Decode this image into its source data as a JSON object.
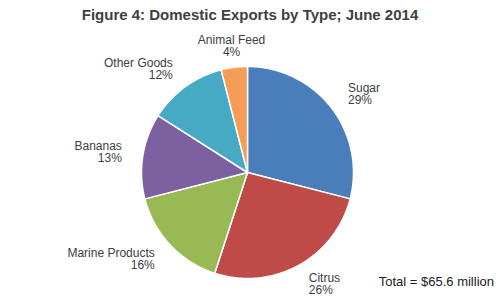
{
  "chart_data": {
    "type": "pie",
    "title": "Figure 4: Domestic Exports by Type; June 2014",
    "categories": [
      "Sugar",
      "Citrus",
      "Marine Products",
      "Bananas",
      "Other Goods",
      "Animal Feed"
    ],
    "values": [
      29,
      26,
      16,
      13,
      12,
      4
    ],
    "value_labels": [
      "29%",
      "26%",
      "16%",
      "13%",
      "12%",
      "4%"
    ],
    "colors": [
      "#4a7ebb",
      "#be4b48",
      "#98b954",
      "#7d60a0",
      "#46aac5",
      "#f59d56"
    ],
    "data_labels": true,
    "annotations": [
      "Total = $65.6 million"
    ]
  }
}
